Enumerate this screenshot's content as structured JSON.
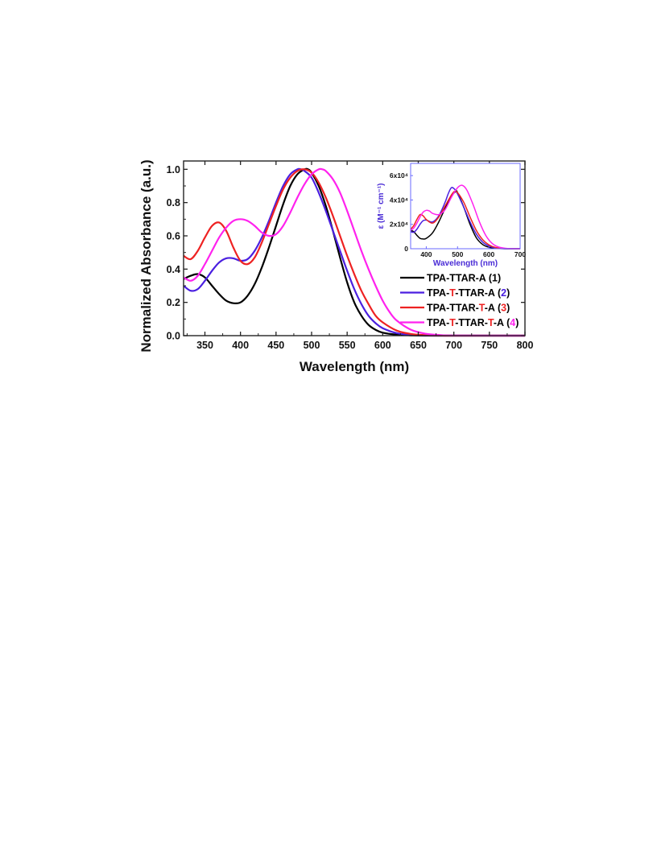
{
  "chart_data": [
    {
      "type": "line",
      "xlabel": "Wavelength (nm)",
      "ylabel": "Normalized Absorbance (a.u.)",
      "xlim": [
        320,
        800
      ],
      "ylim": [
        0,
        1.05
      ],
      "x_ticks": [
        350,
        400,
        450,
        500,
        550,
        600,
        650,
        700,
        750,
        800
      ],
      "y_ticks": [
        0.0,
        0.2,
        0.4,
        0.6,
        0.8,
        1.0
      ],
      "x_tick_labels": [
        "350",
        "400",
        "450",
        "500",
        "550",
        "600",
        "650",
        "700",
        "750",
        "800"
      ],
      "y_tick_labels": [
        "0.0",
        "0.2",
        "0.4",
        "0.6",
        "0.8",
        "1.0"
      ],
      "legend_position": "right",
      "series": [
        {
          "name": "TPA-TTAR-A (1)",
          "color": "#000000",
          "legend_parts": [
            {
              "text": "TPA-TTAR-A (",
              "color": "#000000"
            },
            {
              "text": "1",
              "color": "#000000"
            },
            {
              "text": ")",
              "color": "#000000"
            }
          ],
          "x": [
            320,
            330,
            340,
            350,
            360,
            370,
            380,
            390,
            400,
            410,
            420,
            430,
            440,
            450,
            460,
            470,
            480,
            490,
            495,
            500,
            510,
            520,
            530,
            540,
            550,
            560,
            570,
            580,
            590,
            600,
            620,
            640,
            660,
            700,
            800
          ],
          "y": [
            0.34,
            0.36,
            0.37,
            0.35,
            0.3,
            0.25,
            0.21,
            0.195,
            0.2,
            0.24,
            0.31,
            0.41,
            0.53,
            0.66,
            0.79,
            0.9,
            0.97,
            1.0,
            1.0,
            0.98,
            0.9,
            0.78,
            0.63,
            0.47,
            0.32,
            0.2,
            0.12,
            0.065,
            0.035,
            0.018,
            0.006,
            0.002,
            0.0,
            0.0,
            0.0
          ]
        },
        {
          "name": "TPA-T-TTAR-A (2)",
          "color": "#4a1fe0",
          "legend_parts": [
            {
              "text": "TPA-",
              "color": "#000000"
            },
            {
              "text": "T",
              "color": "#ee2222"
            },
            {
              "text": "-TTAR-A (",
              "color": "#000000"
            },
            {
              "text": "2",
              "color": "#4a1fe0"
            },
            {
              "text": ")",
              "color": "#000000"
            }
          ],
          "x": [
            320,
            330,
            340,
            350,
            360,
            370,
            380,
            390,
            400,
            410,
            420,
            430,
            440,
            450,
            460,
            470,
            480,
            485,
            490,
            500,
            510,
            520,
            530,
            540,
            550,
            560,
            570,
            580,
            590,
            600,
            620,
            640,
            660,
            680,
            700,
            800
          ],
          "y": [
            0.3,
            0.27,
            0.28,
            0.33,
            0.39,
            0.44,
            0.465,
            0.465,
            0.45,
            0.46,
            0.51,
            0.59,
            0.69,
            0.8,
            0.9,
            0.97,
            1.0,
            1.0,
            0.99,
            0.95,
            0.86,
            0.75,
            0.63,
            0.51,
            0.39,
            0.28,
            0.19,
            0.12,
            0.075,
            0.045,
            0.015,
            0.005,
            0.001,
            0.0,
            0.0,
            0.0
          ]
        },
        {
          "name": "TPA-TTAR-T-A (3)",
          "color": "#ee2222",
          "legend_parts": [
            {
              "text": "TPA-TTAR-",
              "color": "#000000"
            },
            {
              "text": "T",
              "color": "#ee2222"
            },
            {
              "text": "-A (",
              "color": "#000000"
            },
            {
              "text": "3",
              "color": "#ee2222"
            },
            {
              "text": ")",
              "color": "#000000"
            }
          ],
          "x": [
            320,
            330,
            340,
            350,
            360,
            370,
            380,
            390,
            400,
            410,
            420,
            430,
            440,
            450,
            460,
            470,
            480,
            490,
            500,
            510,
            520,
            530,
            540,
            550,
            560,
            570,
            580,
            590,
            600,
            620,
            640,
            660,
            680,
            700,
            800
          ],
          "y": [
            0.48,
            0.46,
            0.51,
            0.59,
            0.66,
            0.68,
            0.63,
            0.53,
            0.45,
            0.43,
            0.47,
            0.56,
            0.67,
            0.78,
            0.88,
            0.95,
            0.99,
            1.0,
            0.98,
            0.92,
            0.83,
            0.72,
            0.6,
            0.48,
            0.37,
            0.27,
            0.19,
            0.12,
            0.08,
            0.03,
            0.01,
            0.003,
            0.001,
            0.0,
            0.0
          ]
        },
        {
          "name": "TPA-T-TTAR-T-A (4)",
          "color": "#ff22ee",
          "legend_parts": [
            {
              "text": "TPA-",
              "color": "#000000"
            },
            {
              "text": "T",
              "color": "#ee2222"
            },
            {
              "text": "-TTAR-",
              "color": "#000000"
            },
            {
              "text": "T",
              "color": "#ee2222"
            },
            {
              "text": "-A (",
              "color": "#000000"
            },
            {
              "text": "4",
              "color": "#ff22ee"
            },
            {
              "text": ")",
              "color": "#000000"
            }
          ],
          "x": [
            320,
            330,
            340,
            350,
            360,
            370,
            380,
            390,
            400,
            410,
            420,
            430,
            440,
            450,
            460,
            470,
            480,
            490,
            500,
            510,
            515,
            520,
            530,
            540,
            550,
            560,
            570,
            580,
            590,
            600,
            610,
            620,
            640,
            660,
            680,
            700,
            800
          ],
          "y": [
            0.35,
            0.33,
            0.36,
            0.43,
            0.51,
            0.59,
            0.65,
            0.69,
            0.7,
            0.69,
            0.66,
            0.62,
            0.6,
            0.61,
            0.66,
            0.74,
            0.83,
            0.91,
            0.97,
            1.0,
            1.0,
            0.99,
            0.94,
            0.86,
            0.75,
            0.63,
            0.51,
            0.4,
            0.3,
            0.21,
            0.14,
            0.09,
            0.035,
            0.012,
            0.004,
            0.001,
            0.0
          ]
        }
      ]
    },
    {
      "type": "line",
      "xlabel": "Wavelength (nm)",
      "ylabel": "ε (M⁻¹ cm⁻¹)",
      "xlim": [
        350,
        700
      ],
      "ylim": [
        0,
        70000
      ],
      "x_ticks": [
        400,
        500,
        600,
        700
      ],
      "x_tick_labels": [
        "400",
        "500",
        "600",
        "700"
      ],
      "y_ticks": [
        0,
        20000,
        40000,
        60000
      ],
      "y_tick_labels": [
        "0",
        "2x10⁴",
        "4x10⁴",
        "6x10⁴"
      ],
      "series": [
        {
          "color": "#000000",
          "x": [
            350,
            360,
            370,
            380,
            390,
            400,
            420,
            440,
            460,
            480,
            495,
            500,
            520,
            540,
            560,
            580,
            600,
            620,
            650,
            700
          ],
          "y": [
            15000,
            14000,
            11000,
            8500,
            8000,
            8500,
            13000,
            22000,
            33000,
            43000,
            47000,
            46000,
            34000,
            20000,
            9000,
            3500,
            1200,
            400,
            0,
            0
          ]
        },
        {
          "color": "#4a1fe0",
          "x": [
            350,
            360,
            370,
            380,
            390,
            400,
            420,
            440,
            460,
            470,
            480,
            490,
            500,
            520,
            540,
            560,
            580,
            600,
            620,
            650,
            700
          ],
          "y": [
            14000,
            13500,
            16000,
            20000,
            23000,
            23500,
            22000,
            27000,
            38000,
            45000,
            50000,
            49000,
            45000,
            34000,
            22000,
            12000,
            5500,
            2200,
            700,
            100,
            0
          ]
        },
        {
          "color": "#ee2222",
          "x": [
            350,
            360,
            370,
            380,
            390,
            400,
            420,
            440,
            460,
            480,
            490,
            500,
            520,
            540,
            560,
            580,
            600,
            620,
            650,
            700
          ],
          "y": [
            16000,
            19000,
            24000,
            28000,
            27000,
            24000,
            21000,
            26000,
            35000,
            44000,
            47000,
            46000,
            38000,
            26000,
            15000,
            7500,
            3200,
            1100,
            200,
            0
          ]
        },
        {
          "color": "#ff22ee",
          "x": [
            350,
            360,
            370,
            380,
            390,
            400,
            410,
            420,
            440,
            460,
            480,
            500,
            515,
            530,
            550,
            570,
            590,
            610,
            630,
            660,
            700
          ],
          "y": [
            15000,
            17000,
            21000,
            26000,
            30000,
            31500,
            31000,
            29000,
            28000,
            32000,
            42000,
            50000,
            52000,
            48000,
            36000,
            22000,
            11000,
            4500,
            1500,
            200,
            0
          ]
        }
      ]
    }
  ]
}
